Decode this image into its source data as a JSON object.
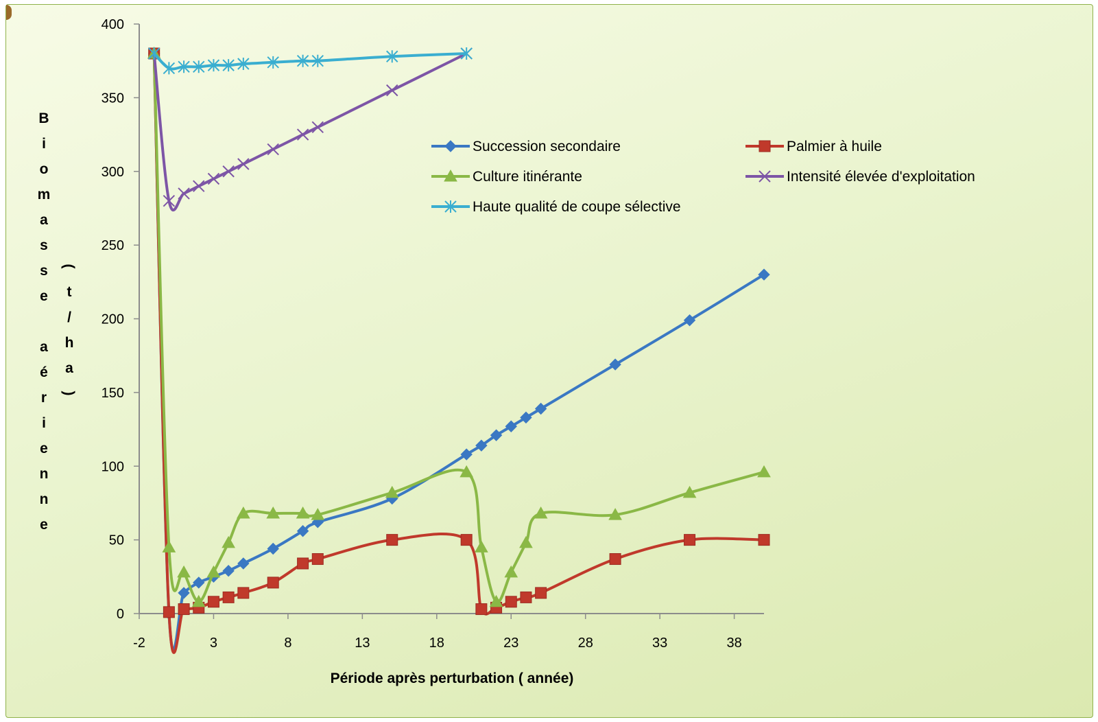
{
  "chart_data": {
    "type": "line",
    "xlabel": "Période après perturbation  ( année)",
    "ylabel_main": "Biomasse aérienne",
    "ylabel_unit": "(t/ha)",
    "xlim": [
      -2,
      40
    ],
    "ylim": [
      0,
      400
    ],
    "xticks": [
      -2,
      3,
      8,
      13,
      18,
      23,
      28,
      33,
      38
    ],
    "yticks": [
      0,
      50,
      100,
      150,
      200,
      250,
      300,
      350,
      400
    ],
    "grid": false,
    "legend_position": "top-center",
    "series": [
      {
        "name": "Succession secondaire",
        "color": "#3a78c3",
        "marker": "diamond",
        "x": [
          -1,
          0,
          1,
          2,
          3,
          4,
          5,
          7,
          9,
          10,
          15,
          20,
          21,
          22,
          23,
          24,
          25,
          30,
          35,
          40
        ],
        "y": [
          380,
          0,
          14,
          21,
          25,
          29,
          34,
          44,
          56,
          62,
          78,
          108,
          114,
          121,
          127,
          133,
          139,
          169,
          199,
          230
        ]
      },
      {
        "name": "Palmier à huile",
        "color": "#c0392b",
        "marker": "square",
        "x": [
          -1,
          0,
          1,
          2,
          3,
          4,
          5,
          7,
          9,
          10,
          15,
          20,
          21,
          22,
          23,
          24,
          25,
          30,
          35,
          40
        ],
        "y": [
          380,
          1,
          3,
          4,
          8,
          11,
          14,
          21,
          34,
          37,
          50,
          50,
          3,
          4,
          8,
          11,
          14,
          37,
          50,
          50
        ]
      },
      {
        "name": "Culture itinérante",
        "color": "#8ab846",
        "marker": "triangle",
        "x": [
          -1,
          0,
          1,
          2,
          3,
          4,
          5,
          7,
          9,
          10,
          15,
          20,
          21,
          22,
          23,
          24,
          25,
          30,
          35,
          40
        ],
        "y": [
          380,
          45,
          28,
          8,
          28,
          48,
          68,
          68,
          68,
          67,
          82,
          96,
          45,
          8,
          28,
          48,
          68,
          67,
          82,
          96
        ]
      },
      {
        "name": "Intensité élevée d'exploitation",
        "color": "#7d55a6",
        "marker": "x",
        "x": [
          -1,
          0,
          1,
          2,
          3,
          4,
          5,
          7,
          9,
          10,
          15,
          20
        ],
        "y": [
          380,
          280,
          285,
          290,
          295,
          300,
          305,
          315,
          325,
          330,
          355,
          380
        ]
      },
      {
        "name": "Haute qualité de coupe sélective",
        "color": "#3aaed0",
        "marker": "asterisk",
        "x": [
          -1,
          0,
          1,
          2,
          3,
          4,
          5,
          7,
          9,
          10,
          15,
          20
        ],
        "y": [
          380,
          370,
          371,
          371,
          372,
          372,
          373,
          374,
          375,
          375,
          378,
          380
        ]
      }
    ]
  }
}
